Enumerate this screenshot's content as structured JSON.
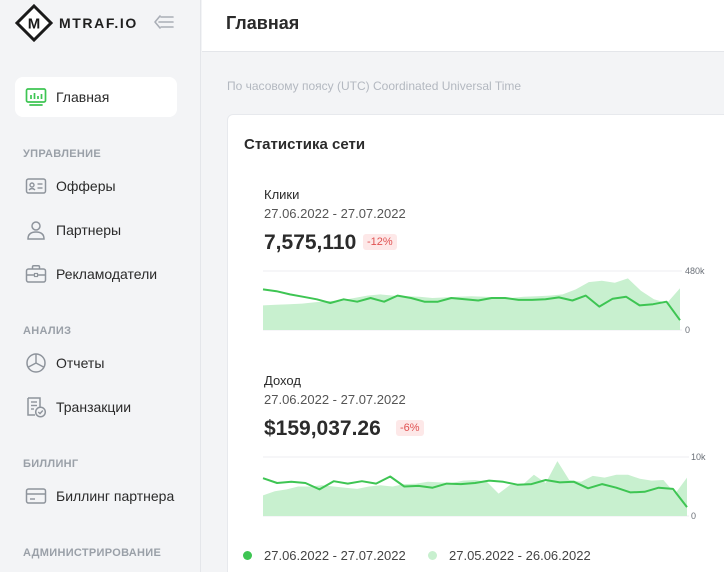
{
  "brand": {
    "name": "MTRAF.IO",
    "logo_letter": "M"
  },
  "sidebar": {
    "items": [
      {
        "label": "Главная",
        "icon": "dashboard-icon",
        "active": true
      },
      {
        "label": "Офферы",
        "icon": "id-card-icon"
      },
      {
        "label": "Партнеры",
        "icon": "user-icon"
      },
      {
        "label": "Рекламодатели",
        "icon": "briefcase-icon"
      },
      {
        "label": "Отчеты",
        "icon": "pie-chart-icon"
      },
      {
        "label": "Транзакции",
        "icon": "receipt-check-icon"
      },
      {
        "label": "Биллинг партнера",
        "icon": "credit-card-icon"
      }
    ],
    "sections": [
      "УПРАВЛЕНИЕ",
      "АНАЛИЗ",
      "БИЛЛИНГ",
      "АДМИНИСТРИРОВАНИЕ"
    ]
  },
  "header": {
    "title": "Главная"
  },
  "timezone_note": "По часовому поясу (UTC) Coordinated Universal Time",
  "stats": {
    "title": "Статистика сети",
    "clicks": {
      "name": "Клики",
      "range": "27.06.2022 - 27.07.2022",
      "value": "7,575,110",
      "change": "-12%",
      "y_max_label": "480k",
      "y_min_label": "0"
    },
    "revenue": {
      "name": "Доход",
      "range": "27.06.2022 - 27.07.2022",
      "value": "$159,037.26",
      "change": "-6%",
      "y_max_label": "10k",
      "y_min_label": "0"
    }
  },
  "legend": {
    "current": "27.06.2022 - 27.07.2022",
    "previous": "27.05.2022 - 26.06.2022"
  },
  "colors": {
    "current_line": "#3ec553",
    "previous_area": "#c8f0cf",
    "badge_text": "#e05252",
    "badge_bg": "#fde8e8"
  },
  "chart_data": [
    {
      "type": "line",
      "title": "Клики",
      "ylim": [
        0,
        480000
      ],
      "y_ticks": [
        "480k",
        "0"
      ],
      "series": [
        {
          "name": "27.06.2022 - 27.07.2022",
          "values": [
            330000,
            316000,
            290000,
            270000,
            250000,
            220000,
            250000,
            230000,
            260000,
            230000,
            280000,
            260000,
            230000,
            230000,
            260000,
            250000,
            240000,
            260000,
            260000,
            245000,
            245000,
            250000,
            265000,
            240000,
            280000,
            190000,
            255000,
            270000,
            200000,
            210000,
            230000,
            80000
          ]
        },
        {
          "name": "27.05.2022 - 26.06.2022",
          "values": [
            200000,
            205000,
            210000,
            215000,
            225000,
            235000,
            240000,
            260000,
            280000,
            290000,
            280000,
            275000,
            270000,
            260000,
            265000,
            270000,
            275000,
            270000,
            265000,
            260000,
            270000,
            275000,
            280000,
            290000,
            330000,
            390000,
            400000,
            385000,
            420000,
            320000,
            250000,
            220000,
            340000
          ]
        }
      ]
    },
    {
      "type": "line",
      "title": "Доход",
      "ylim": [
        0,
        10000
      ],
      "y_ticks": [
        "10k",
        "0"
      ],
      "series": [
        {
          "name": "27.06.2022 - 27.07.2022",
          "values": [
            6400,
            5600,
            5800,
            5600,
            4500,
            5900,
            5500,
            5900,
            5500,
            6700,
            5000,
            5100,
            4800,
            5500,
            5400,
            5600,
            6000,
            5800,
            5300,
            5400,
            6100,
            5700,
            5800,
            4700,
            5400,
            4800,
            4000,
            4100,
            4800,
            4600,
            1500
          ]
        },
        {
          "name": "27.05.2022 - 26.06.2022",
          "values": [
            3500,
            4200,
            4500,
            5000,
            5000,
            5200,
            5000,
            4800,
            4600,
            5000,
            5200,
            5000,
            5400,
            5500,
            5800,
            5700,
            5600,
            6000,
            6100,
            5800,
            3800,
            5300,
            5200,
            7000,
            5600,
            9300,
            6100,
            5800,
            6800,
            6500,
            7000,
            7000,
            6300,
            6000,
            6100,
            3800,
            6500
          ]
        }
      ]
    }
  ]
}
